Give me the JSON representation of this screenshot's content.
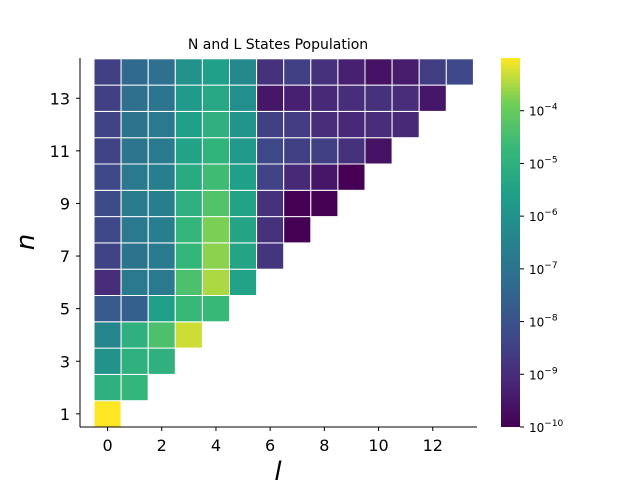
{
  "chart_data": {
    "type": "heatmap",
    "title": "N and L States Population",
    "xlabel": "l",
    "ylabel": "n",
    "x_categories": [
      0,
      1,
      2,
      3,
      4,
      5,
      6,
      7,
      8,
      9,
      10,
      11,
      12,
      13
    ],
    "y_categories": [
      1,
      2,
      3,
      4,
      5,
      6,
      7,
      8,
      9,
      10,
      11,
      12,
      13,
      14
    ],
    "x_ticks": [
      "0",
      "2",
      "4",
      "6",
      "8",
      "10",
      "12"
    ],
    "y_ticks": [
      "1",
      "3",
      "5",
      "7",
      "9",
      "11",
      "13"
    ],
    "color_scale": {
      "type": "log",
      "colormap": "viridis",
      "range": [
        1e-10,
        0.001
      ],
      "ticks": [
        {
          "value": 0.0001,
          "label": "10",
          "exp": "−4"
        },
        {
          "value": 1e-05,
          "label": "10",
          "exp": "−5"
        },
        {
          "value": 1e-06,
          "label": "10",
          "exp": "−6"
        },
        {
          "value": 1e-07,
          "label": "10",
          "exp": "−7"
        },
        {
          "value": 1e-08,
          "label": "10",
          "exp": "−8"
        },
        {
          "value": 1e-09,
          "label": "10",
          "exp": "−9"
        },
        {
          "value": 1e-10,
          "label": "10",
          "exp": "−10"
        }
      ]
    },
    "log10_values": [
      [
        -3.0
      ],
      [
        -5.0,
        -4.8
      ],
      [
        -6.0,
        -5.0,
        -5.0
      ],
      [
        -6.4,
        -5.0,
        -4.4,
        -3.3
      ],
      [
        -7.8,
        -7.6,
        -5.6,
        -4.7,
        -4.7
      ],
      [
        -9.0,
        -6.8,
        -6.8,
        -4.4,
        -3.5,
        -5.5
      ],
      [
        -8.4,
        -7.0,
        -6.7,
        -4.8,
        -3.7,
        -5.4,
        -8.8
      ],
      [
        -8.3,
        -6.8,
        -6.6,
        -4.8,
        -3.8,
        -5.4,
        -8.9,
        -10.0
      ],
      [
        -8.2,
        -6.7,
        -6.6,
        -5.0,
        -4.3,
        -5.5,
        -8.9,
        -10.0,
        -10.0
      ],
      [
        -8.3,
        -6.8,
        -6.6,
        -5.2,
        -4.6,
        -5.6,
        -8.4,
        -9.1,
        -9.5,
        -10.0
      ],
      [
        -8.4,
        -6.9,
        -6.7,
        -5.5,
        -4.9,
        -5.8,
        -8.3,
        -8.5,
        -8.5,
        -8.9,
        -9.6
      ],
      [
        -8.4,
        -7.0,
        -6.8,
        -5.6,
        -5.0,
        -5.9,
        -8.5,
        -8.6,
        -9.0,
        -9.1,
        -9.0,
        -9.1
      ],
      [
        -8.5,
        -7.1,
        -6.9,
        -5.8,
        -5.3,
        -6.1,
        -9.5,
        -9.3,
        -9.1,
        -9.0,
        -8.9,
        -9.0,
        -9.5
      ],
      [
        -8.5,
        -7.3,
        -7.1,
        -6.0,
        -5.6,
        -6.3,
        -8.9,
        -8.5,
        -8.9,
        -9.3,
        -9.6,
        -9.4,
        -8.6,
        -8.3
      ]
    ]
  }
}
